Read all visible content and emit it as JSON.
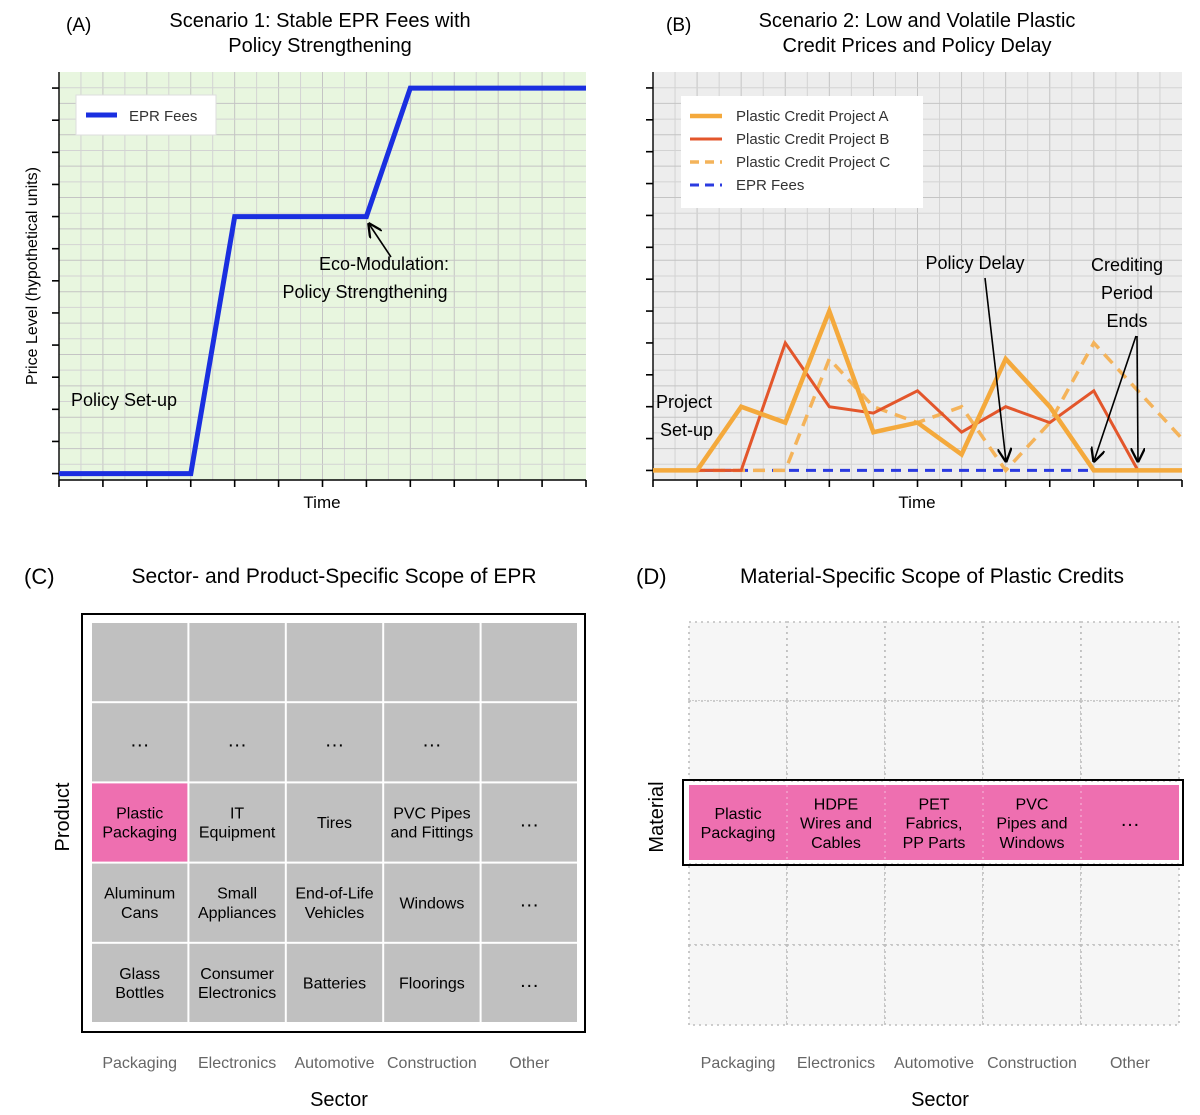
{
  "panel_a": {
    "letter": "(A)",
    "title_lines": [
      "Scenario 1: Stable EPR Fees with",
      "Policy Strengthening"
    ],
    "xlabel": "Time",
    "ylabel": "Price Level (hypothetical units)",
    "legend": [
      "EPR Fees"
    ],
    "annotations": {
      "setup": "Policy Set-up",
      "eco_lines": [
        "Eco-Modulation:",
        "Policy Strengthening"
      ]
    },
    "background": "#e8f6df",
    "line_color": "#1a2fe0"
  },
  "panel_b": {
    "letter": "(B)",
    "title_lines": [
      "Scenario 2: Low and Volatile Plastic",
      "Credit Prices and Policy Delay"
    ],
    "xlabel": "Time",
    "legend": [
      "Plastic Credit Project A",
      "Plastic Credit Project B",
      "Plastic Credit Project C",
      "EPR Fees"
    ],
    "annotations": {
      "project_lines": [
        "Project",
        "Set-up"
      ],
      "delay": "Policy Delay",
      "crediting_lines": [
        "Crediting",
        "Period",
        "Ends"
      ]
    },
    "background": "#ededed",
    "colors": {
      "a": "#f4a93c",
      "b": "#e3562b",
      "c": "#f4b35a",
      "epr": "#2b3be0"
    }
  },
  "chart_data": [
    {
      "type": "line",
      "panel": "A",
      "x": [
        0,
        3,
        4,
        7,
        8,
        12
      ],
      "series": [
        {
          "name": "EPR Fees",
          "values": [
            0,
            0,
            8,
            8,
            12,
            12
          ]
        }
      ],
      "xlim": [
        0,
        12
      ],
      "ylim": [
        -0.2,
        12.5
      ],
      "grid": true,
      "legend_position": "top-left"
    },
    {
      "type": "line",
      "panel": "B",
      "x": [
        0,
        1,
        2,
        3,
        4,
        5,
        6,
        7,
        8,
        9,
        10,
        11,
        12
      ],
      "series": [
        {
          "name": "Plastic Credit Project A",
          "values": [
            0,
            0,
            2,
            1.5,
            5,
            1.2,
            1.5,
            0.5,
            3.5,
            2,
            0,
            0,
            0
          ]
        },
        {
          "name": "Plastic Credit Project B",
          "values": [
            0,
            0,
            0,
            4,
            2,
            1.8,
            2.5,
            1.2,
            2,
            1.5,
            2.5,
            0,
            0
          ]
        },
        {
          "name": "Plastic Credit Project C",
          "values": [
            0,
            0,
            0,
            0,
            3.5,
            2,
            1.5,
            2,
            0,
            1.5,
            4,
            2.5,
            1
          ]
        },
        {
          "name": "EPR Fees",
          "values": [
            0,
            0,
            0,
            0,
            0,
            0,
            0,
            0,
            0,
            0,
            0,
            0,
            0
          ]
        }
      ],
      "xlim": [
        0,
        12
      ],
      "ylim": [
        -0.3,
        12.5
      ],
      "grid": true,
      "legend_position": "top-left"
    }
  ],
  "panel_c": {
    "letter": "(C)",
    "title": "Sector- and Product-Specific Scope of EPR",
    "ylabel": "Product",
    "xlabel": "Sector",
    "sectors": [
      "Packaging",
      "Electronics",
      "Automotive",
      "Construction",
      "Other"
    ],
    "rows": [
      [
        [],
        [],
        [],
        [],
        []
      ],
      [
        [
          "…"
        ],
        [
          "…"
        ],
        [
          "…"
        ],
        [
          "…"
        ],
        []
      ],
      [
        [
          "Plastic",
          "Packaging"
        ],
        [
          "IT",
          "Equipment"
        ],
        [
          "Tires"
        ],
        [
          "PVC Pipes",
          "and Fittings"
        ],
        [
          "…"
        ]
      ],
      [
        [
          "Aluminum",
          "Cans"
        ],
        [
          "Small",
          "Appliances"
        ],
        [
          "End-of-Life",
          "Vehicles"
        ],
        [
          "Windows"
        ],
        [
          "…"
        ]
      ],
      [
        [
          "Glass",
          "Bottles"
        ],
        [
          "Consumer",
          "Electronics"
        ],
        [
          "Batteries"
        ],
        [
          "Floorings"
        ],
        [
          "…"
        ]
      ]
    ],
    "cell_color": "#c0c0c0",
    "highlight_color": "#ee6fb0"
  },
  "panel_d": {
    "letter": "(D)",
    "title": "Material-Specific Scope of Plastic Credits",
    "ylabel": "Material",
    "xlabel": "Sector",
    "sectors": [
      "Packaging",
      "Electronics",
      "Automotive",
      "Construction",
      "Other"
    ],
    "material_row": [
      [
        "Plastic",
        "Packaging"
      ],
      [
        "HDPE",
        "Wires and",
        "Cables"
      ],
      [
        "PET",
        "Fabrics,",
        "PP Parts"
      ],
      [
        "PVC",
        "Pipes and",
        "Windows"
      ],
      [
        "…"
      ]
    ],
    "highlight_color": "#ee6fb0"
  }
}
